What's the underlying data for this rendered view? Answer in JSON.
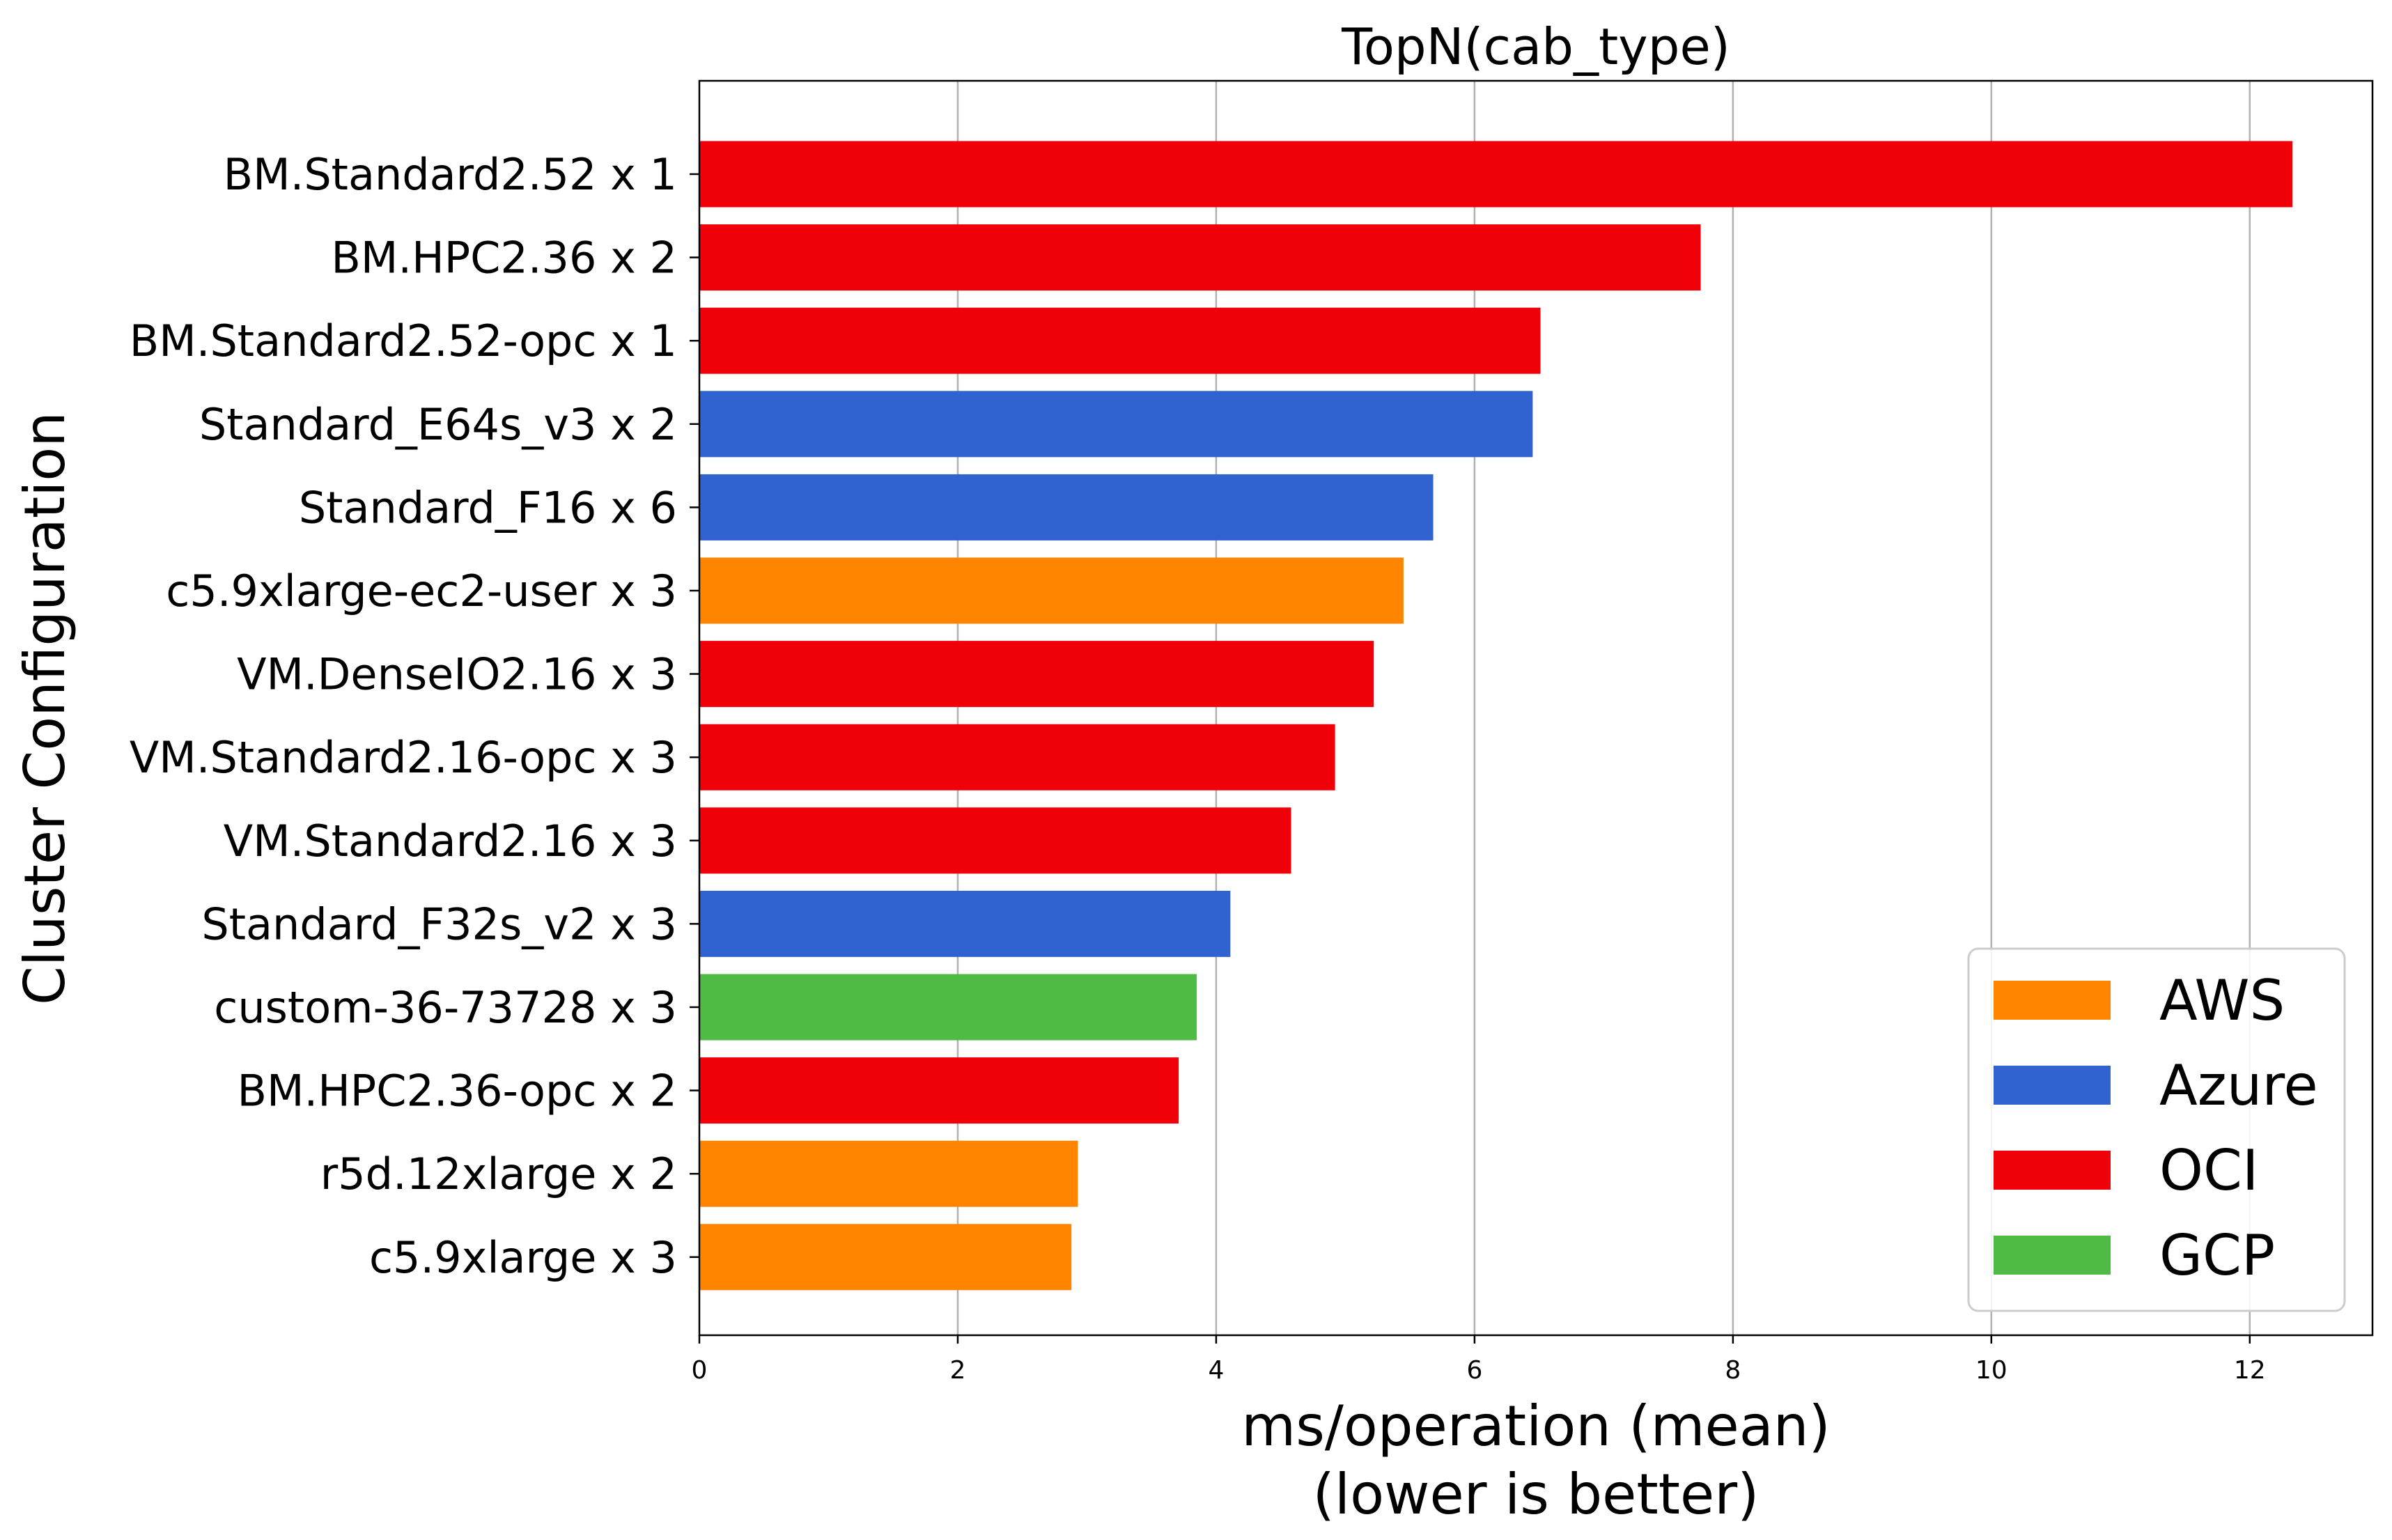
{
  "chart_data": {
    "type": "bar",
    "orientation": "horizontal",
    "title": "TopN(cab_type)",
    "xlabel": "ms/operation (mean)",
    "xlabel_note": "(lower is better)",
    "ylabel": "Cluster Configuration",
    "xlim": [
      0,
      12.95
    ],
    "xticks": [
      0,
      2,
      4,
      6,
      8,
      10,
      12
    ],
    "grid": "vertical",
    "legend_position": "bottom-right",
    "providers": [
      {
        "name": "AWS",
        "color": "#ff8500"
      },
      {
        "name": "Azure",
        "color": "#3063d0"
      },
      {
        "name": "OCI",
        "color": "#f00008"
      },
      {
        "name": "GCP",
        "color": "#4fba44"
      }
    ],
    "bars": [
      {
        "category": "BM.Standard2.52 x 1",
        "value": 12.33,
        "provider": "OCI"
      },
      {
        "category": "BM.HPC2.36 x 2",
        "value": 7.75,
        "provider": "OCI"
      },
      {
        "category": "BM.Standard2.52-opc x 1",
        "value": 6.51,
        "provider": "OCI"
      },
      {
        "category": "Standard_E64s_v3 x 2",
        "value": 6.45,
        "provider": "Azure"
      },
      {
        "category": "Standard_F16 x 6",
        "value": 5.68,
        "provider": "Azure"
      },
      {
        "category": "c5.9xlarge-ec2-user x 3",
        "value": 5.45,
        "provider": "AWS"
      },
      {
        "category": "VM.DenseIO2.16 x 3",
        "value": 5.22,
        "provider": "OCI"
      },
      {
        "category": "VM.Standard2.16-opc x 3",
        "value": 4.92,
        "provider": "OCI"
      },
      {
        "category": "VM.Standard2.16 x 3",
        "value": 4.58,
        "provider": "OCI"
      },
      {
        "category": "Standard_F32s_v2 x 3",
        "value": 4.11,
        "provider": "Azure"
      },
      {
        "category": "custom-36-73728 x 3",
        "value": 3.85,
        "provider": "GCP"
      },
      {
        "category": "BM.HPC2.36-opc x 2",
        "value": 3.71,
        "provider": "OCI"
      },
      {
        "category": "r5d.12xlarge x 2",
        "value": 2.93,
        "provider": "AWS"
      },
      {
        "category": "c5.9xlarge x 3",
        "value": 2.88,
        "provider": "AWS"
      }
    ]
  }
}
